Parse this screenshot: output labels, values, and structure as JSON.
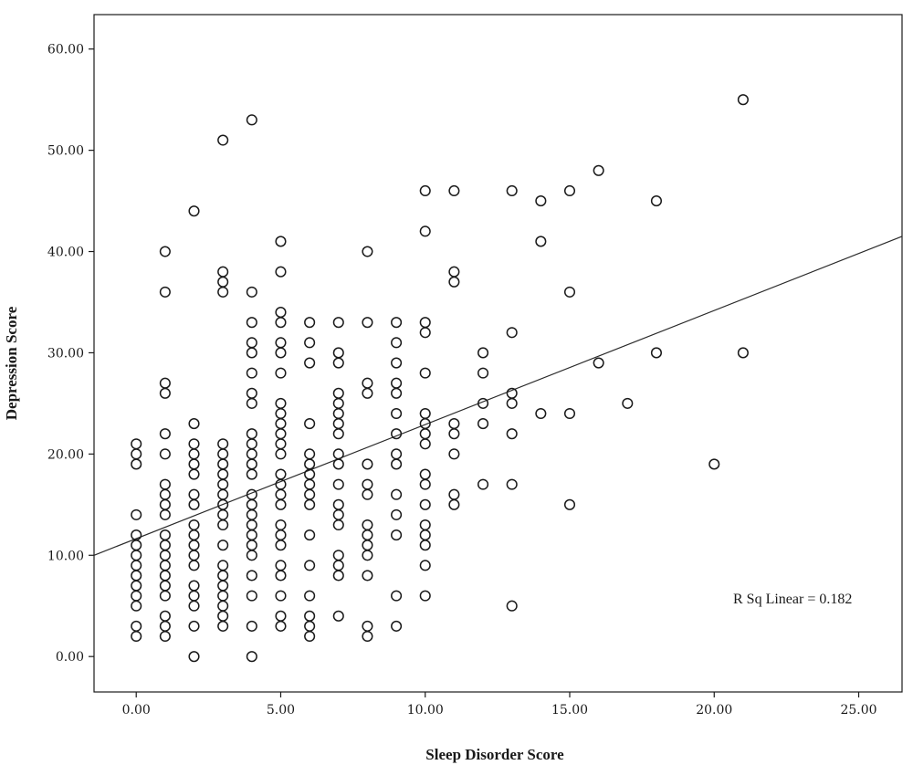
{
  "chart_data": {
    "type": "scatter",
    "title": "",
    "xlabel": "Sleep Disorder Score",
    "ylabel": "Depression Score",
    "xlim": [
      -1.46,
      26.5
    ],
    "ylim": [
      -3.5,
      63.4
    ],
    "grid": false,
    "legend": "none",
    "x_ticks": [
      {
        "value": 0,
        "label": "0.00"
      },
      {
        "value": 5,
        "label": "5.00"
      },
      {
        "value": 10,
        "label": "10.00"
      },
      {
        "value": 15,
        "label": "15.00"
      },
      {
        "value": 20,
        "label": "20.00"
      },
      {
        "value": 25,
        "label": "25.00"
      }
    ],
    "y_ticks": [
      {
        "value": 0,
        "label": "0.00"
      },
      {
        "value": 10,
        "label": "10.00"
      },
      {
        "value": 20,
        "label": "20.00"
      },
      {
        "value": 30,
        "label": "30.00"
      },
      {
        "value": 40,
        "label": "40.00"
      },
      {
        "value": 50,
        "label": "50.00"
      },
      {
        "value": 60,
        "label": "60.00"
      }
    ],
    "fit_line": {
      "x": [
        -1.46,
        26.5
      ],
      "y": [
        10.0,
        41.5
      ]
    },
    "annotations": [
      {
        "text": "R Sq Linear = 0.182"
      }
    ],
    "series": [
      {
        "points": [
          [
            0,
            21
          ],
          [
            0,
            20
          ],
          [
            0,
            19
          ],
          [
            0,
            14
          ],
          [
            0,
            12
          ],
          [
            0,
            11
          ],
          [
            0,
            10
          ],
          [
            0,
            9
          ],
          [
            0,
            8
          ],
          [
            0,
            7
          ],
          [
            0,
            6
          ],
          [
            0,
            5
          ],
          [
            0,
            3
          ],
          [
            0,
            2
          ],
          [
            1,
            40
          ],
          [
            1,
            36
          ],
          [
            1,
            27
          ],
          [
            1,
            26
          ],
          [
            1,
            22
          ],
          [
            1,
            20
          ],
          [
            1,
            17
          ],
          [
            1,
            16
          ],
          [
            1,
            15
          ],
          [
            1,
            14
          ],
          [
            1,
            12
          ],
          [
            1,
            11
          ],
          [
            1,
            10
          ],
          [
            1,
            9
          ],
          [
            1,
            8
          ],
          [
            1,
            7
          ],
          [
            1,
            6
          ],
          [
            1,
            4
          ],
          [
            1,
            3
          ],
          [
            1,
            2
          ],
          [
            2,
            44
          ],
          [
            2,
            23
          ],
          [
            2,
            21
          ],
          [
            2,
            20
          ],
          [
            2,
            19
          ],
          [
            2,
            18
          ],
          [
            2,
            16
          ],
          [
            2,
            15
          ],
          [
            2,
            13
          ],
          [
            2,
            12
          ],
          [
            2,
            11
          ],
          [
            2,
            10
          ],
          [
            2,
            9
          ],
          [
            2,
            7
          ],
          [
            2,
            6
          ],
          [
            2,
            5
          ],
          [
            2,
            3
          ],
          [
            2,
            0
          ],
          [
            3,
            51
          ],
          [
            3,
            38
          ],
          [
            3,
            37
          ],
          [
            3,
            36
          ],
          [
            3,
            21
          ],
          [
            3,
            20
          ],
          [
            3,
            19
          ],
          [
            3,
            18
          ],
          [
            3,
            17
          ],
          [
            3,
            16
          ],
          [
            3,
            15
          ],
          [
            3,
            14
          ],
          [
            3,
            13
          ],
          [
            3,
            11
          ],
          [
            3,
            9
          ],
          [
            3,
            8
          ],
          [
            3,
            7
          ],
          [
            3,
            6
          ],
          [
            3,
            5
          ],
          [
            3,
            4
          ],
          [
            3,
            3
          ],
          [
            4,
            53
          ],
          [
            4,
            36
          ],
          [
            4,
            33
          ],
          [
            4,
            31
          ],
          [
            4,
            30
          ],
          [
            4,
            28
          ],
          [
            4,
            26
          ],
          [
            4,
            25
          ],
          [
            4,
            22
          ],
          [
            4,
            21
          ],
          [
            4,
            20
          ],
          [
            4,
            19
          ],
          [
            4,
            18
          ],
          [
            4,
            16
          ],
          [
            4,
            15
          ],
          [
            4,
            14
          ],
          [
            4,
            13
          ],
          [
            4,
            12
          ],
          [
            4,
            11
          ],
          [
            4,
            10
          ],
          [
            4,
            8
          ],
          [
            4,
            6
          ],
          [
            4,
            3
          ],
          [
            4,
            0
          ],
          [
            5,
            41
          ],
          [
            5,
            38
          ],
          [
            5,
            34
          ],
          [
            5,
            33
          ],
          [
            5,
            31
          ],
          [
            5,
            30
          ],
          [
            5,
            28
          ],
          [
            5,
            25
          ],
          [
            5,
            24
          ],
          [
            5,
            23
          ],
          [
            5,
            22
          ],
          [
            5,
            21
          ],
          [
            5,
            20
          ],
          [
            5,
            18
          ],
          [
            5,
            17
          ],
          [
            5,
            16
          ],
          [
            5,
            15
          ],
          [
            5,
            13
          ],
          [
            5,
            12
          ],
          [
            5,
            11
          ],
          [
            5,
            9
          ],
          [
            5,
            8
          ],
          [
            5,
            6
          ],
          [
            5,
            4
          ],
          [
            5,
            3
          ],
          [
            6,
            33
          ],
          [
            6,
            31
          ],
          [
            6,
            29
          ],
          [
            6,
            23
          ],
          [
            6,
            20
          ],
          [
            6,
            19
          ],
          [
            6,
            18
          ],
          [
            6,
            17
          ],
          [
            6,
            16
          ],
          [
            6,
            15
          ],
          [
            6,
            12
          ],
          [
            6,
            9
          ],
          [
            6,
            6
          ],
          [
            6,
            4
          ],
          [
            6,
            3
          ],
          [
            6,
            2
          ],
          [
            7,
            33
          ],
          [
            7,
            30
          ],
          [
            7,
            29
          ],
          [
            7,
            26
          ],
          [
            7,
            25
          ],
          [
            7,
            24
          ],
          [
            7,
            23
          ],
          [
            7,
            22
          ],
          [
            7,
            20
          ],
          [
            7,
            19
          ],
          [
            7,
            17
          ],
          [
            7,
            15
          ],
          [
            7,
            14
          ],
          [
            7,
            13
          ],
          [
            7,
            10
          ],
          [
            7,
            9
          ],
          [
            7,
            8
          ],
          [
            7,
            4
          ],
          [
            8,
            40
          ],
          [
            8,
            33
          ],
          [
            8,
            27
          ],
          [
            8,
            26
          ],
          [
            8,
            19
          ],
          [
            8,
            17
          ],
          [
            8,
            16
          ],
          [
            8,
            13
          ],
          [
            8,
            12
          ],
          [
            8,
            11
          ],
          [
            8,
            10
          ],
          [
            8,
            8
          ],
          [
            8,
            3
          ],
          [
            8,
            2
          ],
          [
            9,
            33
          ],
          [
            9,
            31
          ],
          [
            9,
            29
          ],
          [
            9,
            27
          ],
          [
            9,
            26
          ],
          [
            9,
            24
          ],
          [
            9,
            22
          ],
          [
            9,
            20
          ],
          [
            9,
            19
          ],
          [
            9,
            16
          ],
          [
            9,
            14
          ],
          [
            9,
            12
          ],
          [
            9,
            6
          ],
          [
            9,
            3
          ],
          [
            10,
            46
          ],
          [
            10,
            42
          ],
          [
            10,
            33
          ],
          [
            10,
            32
          ],
          [
            10,
            28
          ],
          [
            10,
            24
          ],
          [
            10,
            23
          ],
          [
            10,
            22
          ],
          [
            10,
            21
          ],
          [
            10,
            18
          ],
          [
            10,
            17
          ],
          [
            10,
            15
          ],
          [
            10,
            13
          ],
          [
            10,
            12
          ],
          [
            10,
            11
          ],
          [
            10,
            9
          ],
          [
            10,
            6
          ],
          [
            11,
            46
          ],
          [
            11,
            38
          ],
          [
            11,
            37
          ],
          [
            11,
            23
          ],
          [
            11,
            22
          ],
          [
            11,
            20
          ],
          [
            11,
            16
          ],
          [
            11,
            15
          ],
          [
            12,
            30
          ],
          [
            12,
            28
          ],
          [
            12,
            25
          ],
          [
            12,
            23
          ],
          [
            12,
            17
          ],
          [
            13,
            46
          ],
          [
            13,
            32
          ],
          [
            13,
            26
          ],
          [
            13,
            25
          ],
          [
            13,
            22
          ],
          [
            13,
            17
          ],
          [
            13,
            5
          ],
          [
            14,
            45
          ],
          [
            14,
            41
          ],
          [
            14,
            24
          ],
          [
            15,
            46
          ],
          [
            15,
            36
          ],
          [
            15,
            24
          ],
          [
            15,
            15
          ],
          [
            16,
            48
          ],
          [
            16,
            29
          ],
          [
            17,
            25
          ],
          [
            18,
            45
          ],
          [
            18,
            30
          ],
          [
            20,
            19
          ],
          [
            21,
            55
          ],
          [
            21,
            30
          ]
        ]
      }
    ]
  }
}
